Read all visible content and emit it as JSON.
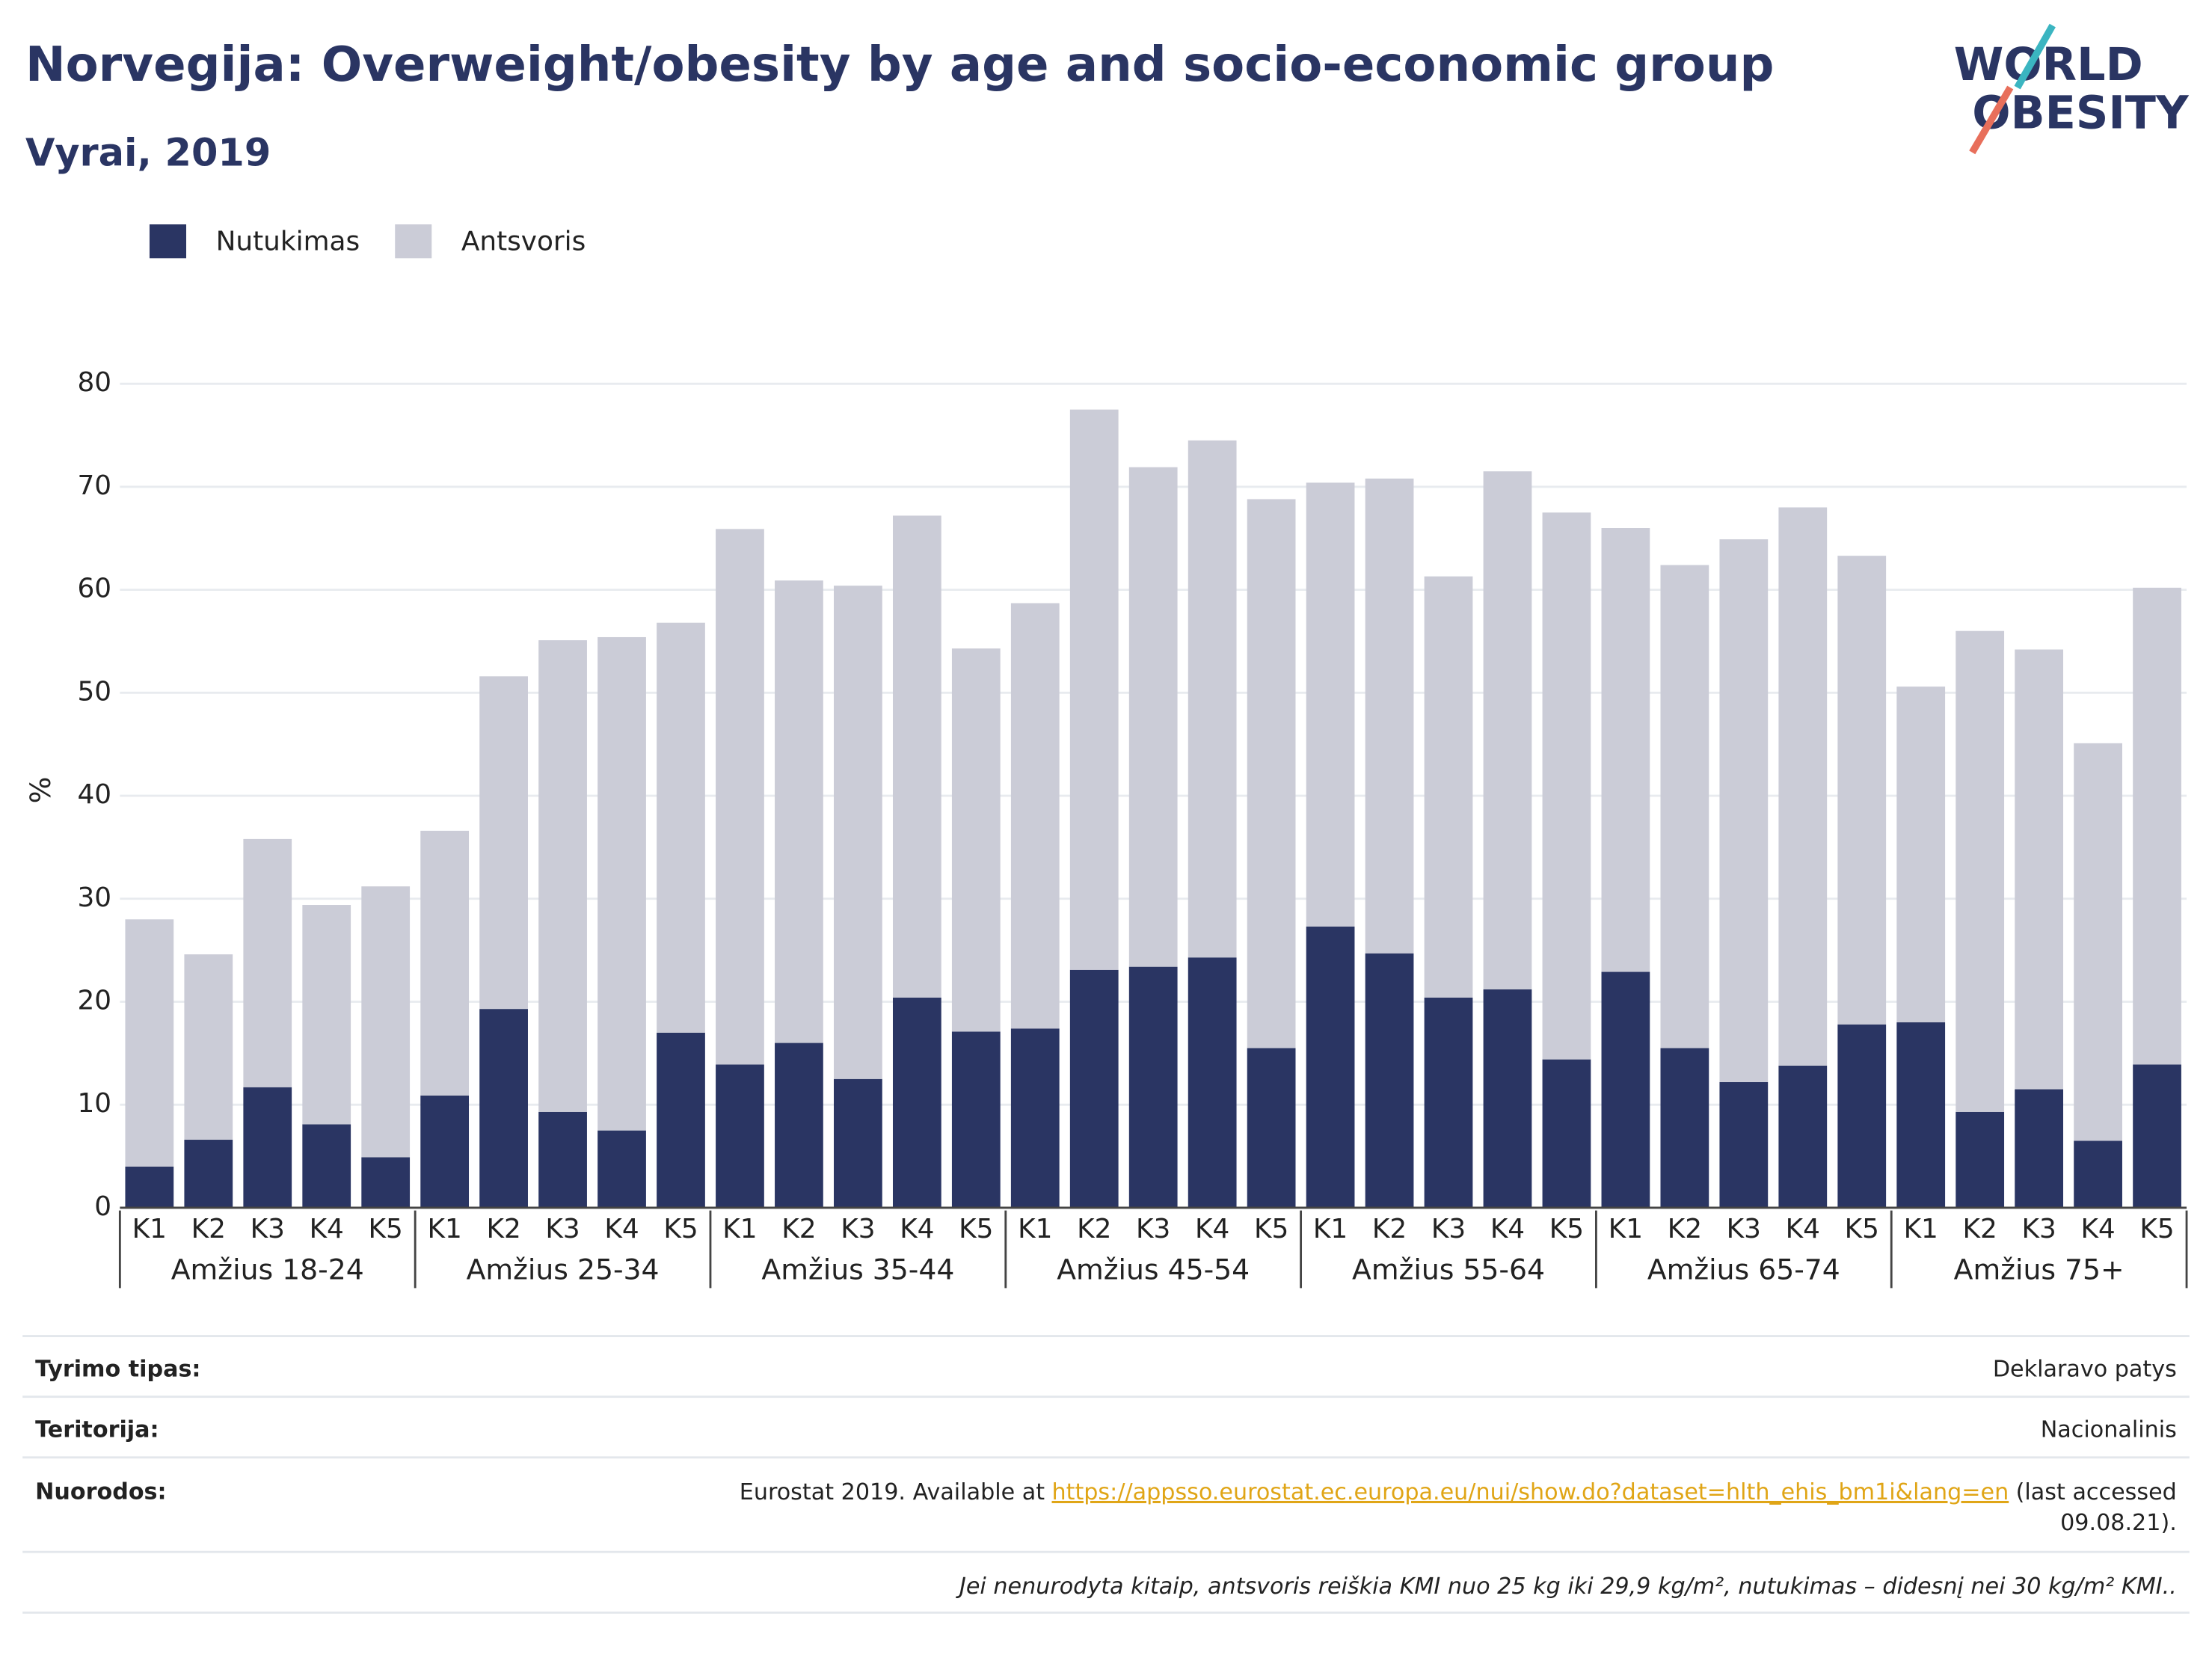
{
  "chart_data": {
    "type": "stacked-bar",
    "title": "Norvegija: Overweight/obesity by age and socio-economic group",
    "subtitle": "Vyrai, 2019",
    "logo": [
      "WORLD",
      "OBESITY"
    ],
    "ylabel": "%",
    "groups": [
      "Amžius 18-24",
      "Amžius 25-34",
      "Amžius 35-44",
      "Amžius 45-54",
      "Amžius 55-64",
      "Amžius 65-74",
      "Amžius 75+"
    ],
    "categories": [
      "K1",
      "K2",
      "K3",
      "K4",
      "K5",
      "K1",
      "K2",
      "K3",
      "K4",
      "K5",
      "K1",
      "K2",
      "K3",
      "K4",
      "K5",
      "K1",
      "K2",
      "K3",
      "K4",
      "K5",
      "K1",
      "K2",
      "K3",
      "K4",
      "K5",
      "K1",
      "K2",
      "K3",
      "K4",
      "K5",
      "K1",
      "K2",
      "K3",
      "K4",
      "K5"
    ],
    "series": [
      {
        "name": "Nutukimas",
        "color": "#2a3563",
        "values": [
          4,
          6.6,
          11.7,
          8.1,
          4.9,
          10.9,
          19.3,
          9.3,
          7.5,
          17,
          13.9,
          16,
          12.5,
          20.4,
          17.1,
          17.4,
          23.1,
          23.4,
          24.3,
          15.5,
          27.3,
          24.7,
          20.4,
          21.2,
          14.4,
          22.9,
          15.5,
          12.2,
          13.8,
          17.8,
          18,
          9.3,
          11.5,
          6.5,
          13.9
        ]
      },
      {
        "name": "Antsvoris",
        "color": "#cbccd7",
        "values": [
          24,
          18,
          24.1,
          21.3,
          26.3,
          25.7,
          32.3,
          45.8,
          47.9,
          39.8,
          52,
          44.9,
          47.9,
          46.8,
          37.2,
          41.3,
          54.4,
          48.5,
          50.2,
          53.3,
          43.1,
          46.1,
          40.9,
          50.3,
          53.1,
          43.1,
          46.9,
          52.7,
          54.2,
          45.5,
          32.6,
          46.7,
          42.7,
          38.6,
          46.3
        ]
      }
    ],
    "ylim": [
      0,
      80
    ],
    "yticks": [
      0,
      10,
      20,
      30,
      40,
      50,
      60,
      70,
      80
    ],
    "grid": true,
    "legend": "top-left"
  },
  "footer": {
    "rows": [
      {
        "label": "Tyrimo tipas:",
        "value": "Deklaravo patys"
      },
      {
        "label": "Teritorija:",
        "value": "Nacionalinis"
      }
    ],
    "reference": {
      "label": "Nuorodos:",
      "before": "Eurostat 2019. Available at",
      "link": "https://appsso.eurostat.ec.europa.eu/nui/show.do?dataset=hlth_ehis_bm1i&lang=en",
      "after_line1": "(last accessed",
      "after_line2": "09.08.21)."
    },
    "note": "Jei nenurodyta kitaip, antsvoris reiškia KMI nuo 25 kg iki 29,9 kg/m², nutukimas – didesnį nei 30 kg/m² KMI.."
  }
}
